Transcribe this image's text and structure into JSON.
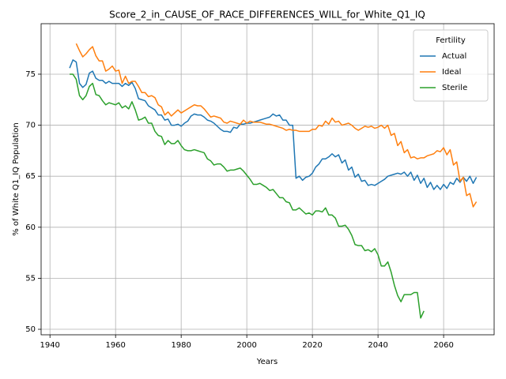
{
  "chart_data": {
    "type": "line",
    "title": "Score_2_in_CAUSE_OF_RACE_DIFFERENCES_WILL_for_White_Q1_IQ",
    "xlabel": "Years",
    "ylabel": "% of White Q1_IQ Population",
    "legend_title": "Fertility",
    "legend": "upper right",
    "grid": true,
    "xlim": [
      1937.3,
      2075.4
    ],
    "ylim": [
      49.46,
      79.95
    ],
    "xticks": [
      1940,
      1960,
      1980,
      2000,
      2020,
      2040,
      2060
    ],
    "yticks": [
      50,
      55,
      60,
      65,
      70,
      75
    ],
    "x": [
      1946,
      1947,
      1948,
      1949,
      1950,
      1951,
      1952,
      1953,
      1954,
      1955,
      1956,
      1957,
      1958,
      1959,
      1960,
      1961,
      1962,
      1963,
      1964,
      1965,
      1966,
      1967,
      1968,
      1969,
      1970,
      1971,
      1972,
      1973,
      1974,
      1975,
      1976,
      1977,
      1978,
      1979,
      1980,
      1981,
      1982,
      1983,
      1984,
      1985,
      1986,
      1987,
      1988,
      1989,
      1990,
      1991,
      1992,
      1993,
      1994,
      1995,
      1996,
      1997,
      1998,
      1999,
      2000,
      2001,
      2002,
      2003,
      2004,
      2005,
      2006,
      2007,
      2008,
      2009,
      2010,
      2011,
      2012,
      2013,
      2014,
      2015,
      2016,
      2017,
      2018,
      2019,
      2020,
      2021,
      2022,
      2023,
      2024,
      2025,
      2026,
      2027,
      2028,
      2029,
      2030,
      2031,
      2032,
      2033,
      2034,
      2035,
      2036,
      2037,
      2038,
      2039,
      2040,
      2041,
      2042,
      2043,
      2044,
      2045,
      2046,
      2047,
      2048,
      2049,
      2050,
      2051,
      2052,
      2053,
      2054,
      2055,
      2056,
      2057,
      2058,
      2059,
      2060,
      2061,
      2062,
      2063,
      2064,
      2065,
      2066,
      2067,
      2068,
      2069,
      2070
    ],
    "series": [
      {
        "name": "Actual",
        "color": "#1f77b4",
        "values": [
          75.6,
          76.4,
          76.2,
          74.1,
          73.7,
          74.0,
          75.1,
          75.3,
          74.6,
          74.4,
          74.4,
          74.1,
          74.3,
          74.1,
          74.1,
          74.1,
          73.8,
          74.1,
          73.9,
          74.2,
          73.6,
          72.6,
          72.5,
          72.4,
          71.9,
          71.7,
          71.5,
          71.0,
          71.0,
          70.5,
          70.6,
          70.0,
          70.0,
          70.1,
          69.9,
          70.2,
          70.4,
          70.9,
          71.1,
          71.0,
          71.0,
          70.8,
          70.5,
          70.4,
          70.2,
          69.9,
          69.6,
          69.4,
          69.4,
          69.3,
          69.8,
          69.7,
          70.1,
          70.1,
          70.2,
          70.2,
          70.3,
          70.4,
          70.5,
          70.6,
          70.7,
          70.8,
          71.1,
          70.9,
          71.0,
          70.5,
          70.5,
          70.0,
          70.0,
          64.8,
          65.0,
          64.6,
          64.9,
          65.0,
          65.3,
          65.9,
          66.2,
          66.7,
          66.7,
          66.9,
          67.2,
          66.9,
          67.1,
          66.3,
          66.6,
          65.6,
          65.9,
          64.9,
          65.2,
          64.5,
          64.6,
          64.1,
          64.2,
          64.1,
          64.3,
          64.5,
          64.7,
          65.0,
          65.1,
          65.2,
          65.3,
          65.2,
          65.4,
          65.0,
          65.4,
          64.6,
          65.1,
          64.3,
          64.8,
          63.9,
          64.4,
          63.7,
          64.1,
          63.7,
          64.2,
          63.8,
          64.4,
          64.2,
          64.8,
          64.4,
          64.9,
          64.5,
          65.0,
          64.3,
          64.9
        ]
      },
      {
        "name": "Ideal",
        "color": "#ff7f0e",
        "values": [
          null,
          null,
          78.0,
          77.3,
          76.7,
          77.0,
          77.4,
          77.7,
          76.8,
          76.3,
          76.3,
          75.3,
          75.5,
          75.8,
          75.3,
          75.4,
          74.1,
          74.8,
          74.1,
          74.3,
          74.3,
          73.8,
          73.2,
          73.2,
          72.8,
          72.9,
          72.7,
          72.0,
          71.8,
          71.0,
          71.3,
          70.9,
          71.2,
          71.5,
          71.2,
          71.4,
          71.6,
          71.8,
          72.0,
          71.9,
          71.9,
          71.6,
          71.2,
          70.8,
          70.9,
          70.8,
          70.7,
          70.3,
          70.2,
          70.4,
          70.3,
          70.2,
          70.1,
          70.5,
          70.2,
          70.4,
          70.3,
          70.3,
          70.3,
          70.2,
          70.1,
          70.1,
          70.0,
          69.9,
          69.8,
          69.7,
          69.5,
          69.6,
          69.5,
          69.5,
          69.4,
          69.4,
          69.4,
          69.4,
          69.6,
          69.6,
          70.0,
          69.9,
          70.4,
          70.1,
          70.7,
          70.3,
          70.4,
          70.0,
          70.1,
          70.2,
          70.0,
          69.7,
          69.5,
          69.7,
          69.9,
          69.8,
          69.9,
          69.7,
          69.8,
          70.0,
          69.7,
          70.0,
          69.0,
          69.2,
          68.0,
          68.4,
          67.3,
          67.6,
          66.8,
          66.9,
          66.7,
          66.8,
          66.8,
          67.0,
          67.1,
          67.2,
          67.5,
          67.4,
          67.8,
          67.1,
          67.6,
          66.1,
          66.4,
          64.5,
          64.9,
          63.1,
          63.3,
          62.0,
          62.5
        ]
      },
      {
        "name": "Sterile",
        "color": "#2ca02c",
        "values": [
          75.0,
          75.0,
          74.5,
          72.9,
          72.5,
          72.9,
          73.8,
          74.1,
          73.0,
          72.9,
          72.4,
          72.0,
          72.2,
          72.1,
          72.0,
          72.2,
          71.7,
          71.9,
          71.6,
          72.3,
          71.5,
          70.5,
          70.6,
          70.8,
          70.2,
          70.2,
          69.4,
          69.0,
          68.9,
          68.1,
          68.5,
          68.2,
          68.2,
          68.5,
          68.0,
          67.6,
          67.5,
          67.5,
          67.6,
          67.5,
          67.4,
          67.3,
          66.7,
          66.5,
          66.1,
          66.2,
          66.2,
          65.9,
          65.5,
          65.6,
          65.6,
          65.7,
          65.8,
          65.5,
          65.1,
          64.7,
          64.2,
          64.2,
          64.3,
          64.1,
          63.9,
          63.6,
          63.7,
          63.3,
          62.9,
          62.9,
          62.5,
          62.4,
          61.7,
          61.7,
          61.9,
          61.6,
          61.3,
          61.4,
          61.2,
          61.6,
          61.6,
          61.5,
          61.9,
          61.2,
          61.2,
          60.9,
          60.1,
          60.1,
          60.2,
          59.8,
          59.2,
          58.3,
          58.2,
          58.2,
          57.7,
          57.8,
          57.6,
          57.9,
          57.3,
          56.2,
          56.2,
          56.6,
          55.6,
          54.3,
          53.3,
          52.7,
          53.4,
          53.4,
          53.4,
          53.6,
          53.6,
          51.1,
          51.8,
          null,
          null,
          null,
          null,
          null,
          null,
          null,
          null,
          null,
          null,
          null,
          null,
          null,
          null,
          null,
          null
        ]
      }
    ]
  }
}
